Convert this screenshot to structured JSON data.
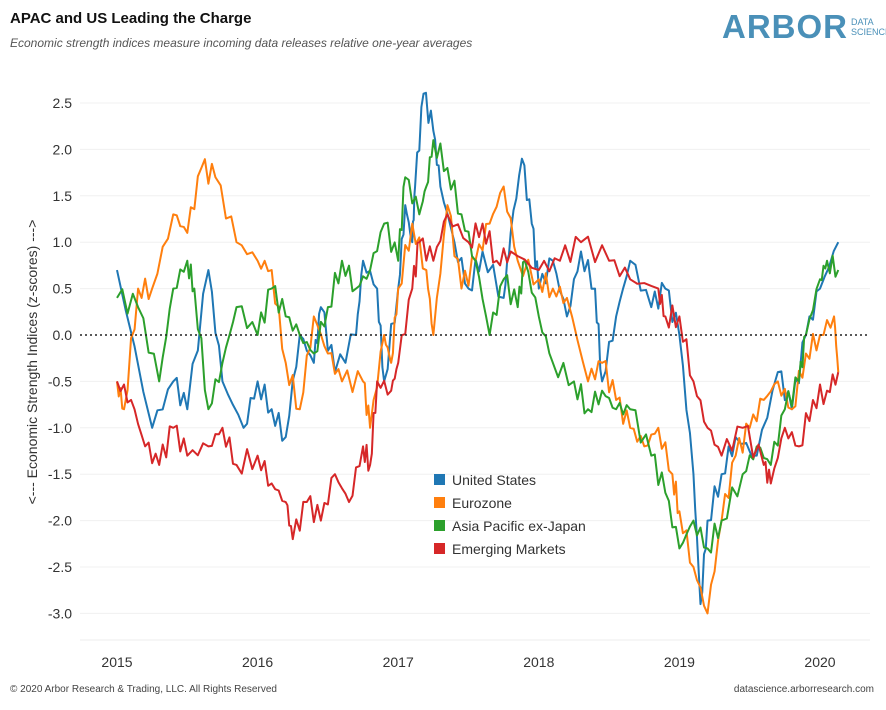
{
  "header": {
    "title": "APAC and US Leading the Charge",
    "subtitle": "Economic strength indices measure incoming data releases relative one-year averages",
    "logo_main": "ARBOR",
    "logo_sub_1": "DATA",
    "logo_sub_2": "SCIENCE"
  },
  "footer": {
    "copyright": "© 2020 Arbor Research & Trading, LLC. All Rights Reserved",
    "website": "datascience.arborresearch.com"
  },
  "chart_data": {
    "type": "line",
    "title": "APAC and US Leading the Charge",
    "xlabel": "",
    "ylabel": "<--- Economic Strength Indices (z-scores) --->",
    "xlim": [
      2014.8,
      2020.3
    ],
    "ylim": [
      -3.2,
      2.7
    ],
    "x_ticks": [
      "2015",
      "2016",
      "2017",
      "2018",
      "2019",
      "2020"
    ],
    "y_ticks": [
      "2.5",
      "2.0",
      "1.5",
      "1.0",
      "0.5",
      "0.0",
      "-0.5",
      "-1.0",
      "-1.5",
      "-2.0",
      "-2.5",
      "-3.0"
    ],
    "y_tick_values": [
      2.5,
      2.0,
      1.5,
      1.0,
      0.5,
      0.0,
      -0.5,
      -1.0,
      -1.5,
      -2.0,
      -2.5,
      -3.0
    ],
    "grid": "horizontal",
    "zero_line": "dotted",
    "legend_placement": "bottom-center",
    "series": [
      {
        "name": "United States",
        "color": "#1f77b4",
        "x": [
          2015.0,
          2015.25,
          2015.4,
          2015.5,
          2015.65,
          2015.75,
          2015.9,
          2016.0,
          2016.1,
          2016.2,
          2016.3,
          2016.4,
          2016.45,
          2016.55,
          2016.7,
          2016.75,
          2016.85,
          2016.9,
          2017.0,
          2017.05,
          2017.1,
          2017.12,
          2017.18,
          2017.25,
          2017.3,
          2017.4,
          2017.5,
          2017.6,
          2017.75,
          2017.8,
          2017.88,
          2017.95,
          2018.0,
          2018.1,
          2018.2,
          2018.3,
          2018.4,
          2018.45,
          2018.55,
          2018.65,
          2018.8,
          2018.9,
          2019.0,
          2019.1,
          2019.15,
          2019.2,
          2019.3,
          2019.4,
          2019.55,
          2019.7,
          2019.8,
          2019.9,
          2020.0,
          2020.13
        ],
        "y": [
          0.7,
          -1.0,
          -0.5,
          -0.8,
          0.7,
          -0.5,
          -1.0,
          -0.5,
          -0.8,
          -1.1,
          0.0,
          -0.3,
          0.3,
          -0.4,
          0.0,
          0.8,
          0.5,
          -0.5,
          0.5,
          1.4,
          1.0,
          1.6,
          2.6,
          2.2,
          1.6,
          1.0,
          0.5,
          0.9,
          0.4,
          1.1,
          1.9,
          1.2,
          0.5,
          0.8,
          0.2,
          0.9,
          0.5,
          -0.5,
          0.2,
          0.8,
          0.3,
          0.5,
          0.0,
          -1.5,
          -2.9,
          -2.0,
          -1.5,
          -1.1,
          -1.3,
          -0.4,
          -0.8,
          0.0,
          0.5,
          1.0
        ]
      },
      {
        "name": "Eurozone",
        "color": "#ff7f0e",
        "x": [
          2015.0,
          2015.05,
          2015.15,
          2015.25,
          2015.4,
          2015.5,
          2015.6,
          2015.7,
          2015.85,
          2016.0,
          2016.1,
          2016.2,
          2016.3,
          2016.4,
          2016.5,
          2016.6,
          2016.75,
          2016.8,
          2016.9,
          2016.95,
          2017.0,
          2017.1,
          2017.2,
          2017.25,
          2017.35,
          2017.45,
          2017.55,
          2017.65,
          2017.75,
          2017.85,
          2018.0,
          2018.1,
          2018.2,
          2018.35,
          2018.45,
          2018.55,
          2018.65,
          2018.75,
          2018.85,
          2018.95,
          2019.0,
          2019.1,
          2019.2,
          2019.3,
          2019.4,
          2019.5,
          2019.6,
          2019.7,
          2019.8,
          2019.9,
          2020.0,
          2020.1,
          2020.13
        ],
        "y": [
          -0.5,
          -0.8,
          0.5,
          0.5,
          1.3,
          1.1,
          1.8,
          1.7,
          1.0,
          0.8,
          0.7,
          -0.3,
          -0.8,
          0.2,
          -0.2,
          -0.5,
          -0.5,
          -1.0,
          0.0,
          -0.3,
          0.5,
          1.2,
          0.7,
          0.0,
          1.4,
          0.5,
          0.8,
          1.2,
          1.6,
          0.8,
          0.6,
          0.5,
          0.4,
          -0.5,
          -0.3,
          -0.7,
          -1.0,
          -1.2,
          -1.0,
          -1.5,
          -1.9,
          -2.5,
          -3.0,
          -2.0,
          -1.3,
          -1.0,
          -0.7,
          -0.5,
          -0.8,
          -0.2,
          0.0,
          0.2,
          -0.4
        ]
      },
      {
        "name": "Asia Pacific ex-Japan",
        "color": "#2ca02c",
        "x": [
          2015.0,
          2015.15,
          2015.3,
          2015.4,
          2015.5,
          2015.55,
          2015.65,
          2015.75,
          2015.85,
          2016.0,
          2016.1,
          2016.2,
          2016.3,
          2016.4,
          2016.5,
          2016.6,
          2016.7,
          2016.8,
          2016.9,
          2017.0,
          2017.05,
          2017.15,
          2017.2,
          2017.25,
          2017.35,
          2017.45,
          2017.55,
          2017.65,
          2017.75,
          2017.85,
          2017.9,
          2018.0,
          2018.1,
          2018.25,
          2018.35,
          2018.45,
          2018.55,
          2018.65,
          2018.8,
          2018.9,
          2019.0,
          2019.1,
          2019.2,
          2019.3,
          2019.45,
          2019.55,
          2019.65,
          2019.75,
          2019.85,
          2019.9,
          2020.0,
          2020.05,
          2020.13
        ],
        "y": [
          0.4,
          0.3,
          -0.5,
          0.5,
          0.8,
          0.5,
          -0.8,
          -0.3,
          0.3,
          0.0,
          0.5,
          0.2,
          0.0,
          -0.2,
          0.3,
          0.8,
          0.5,
          0.7,
          1.2,
          0.8,
          1.7,
          1.3,
          1.6,
          2.1,
          1.8,
          1.3,
          0.8,
          0.0,
          0.6,
          0.3,
          0.8,
          0.2,
          -0.3,
          -0.5,
          -0.8,
          -0.6,
          -0.8,
          -0.8,
          -1.3,
          -1.7,
          -2.3,
          -2.0,
          -2.3,
          -2.0,
          -1.5,
          -1.2,
          -1.4,
          -0.8,
          -0.5,
          0.0,
          0.6,
          0.8,
          0.7
        ]
      },
      {
        "name": "Emerging Markets",
        "color": "#d62728",
        "x": [
          2015.0,
          2015.1,
          2015.2,
          2015.3,
          2015.4,
          2015.5,
          2015.65,
          2015.75,
          2015.85,
          2016.0,
          2016.1,
          2016.2,
          2016.25,
          2016.35,
          2016.45,
          2016.55,
          2016.65,
          2016.75,
          2016.8,
          2016.85,
          2016.95,
          2017.0,
          2017.1,
          2017.15,
          2017.25,
          2017.35,
          2017.5,
          2017.6,
          2017.7,
          2017.8,
          2018.0,
          2018.15,
          2018.3,
          2018.5,
          2018.65,
          2018.85,
          2018.9,
          2019.0,
          2019.1,
          2019.2,
          2019.3,
          2019.45,
          2019.6,
          2019.65,
          2019.75,
          2019.85,
          2019.95,
          2020.05,
          2020.13
        ],
        "y": [
          -0.5,
          -0.7,
          -1.2,
          -1.4,
          -1.0,
          -1.3,
          -1.2,
          -1.0,
          -1.4,
          -1.3,
          -1.6,
          -1.8,
          -2.2,
          -1.8,
          -2.0,
          -1.5,
          -1.8,
          -1.2,
          -1.4,
          -0.5,
          -0.6,
          -0.3,
          0.5,
          1.0,
          0.8,
          1.3,
          1.0,
          1.2,
          0.8,
          0.9,
          0.7,
          0.8,
          1.0,
          0.8,
          0.6,
          0.5,
          0.2,
          0.2,
          -0.5,
          -1.0,
          -1.3,
          -1.0,
          -1.4,
          -1.6,
          -1.0,
          -1.2,
          -0.7,
          -0.6,
          -0.4
        ]
      }
    ]
  }
}
